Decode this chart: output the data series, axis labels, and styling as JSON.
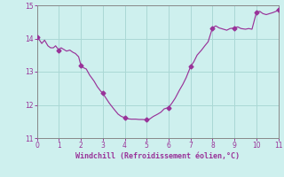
{
  "xlabel": "Windchill (Refroidissement éolien,°C)",
  "xlim": [
    0,
    11
  ],
  "ylim": [
    11,
    15
  ],
  "yticks": [
    11,
    12,
    13,
    14,
    15
  ],
  "xticks": [
    0,
    1,
    2,
    3,
    4,
    5,
    6,
    7,
    8,
    9,
    10,
    11
  ],
  "background_color": "#cef0ee",
  "line_color": "#993399",
  "grid_color": "#aad8d5",
  "x": [
    0.0,
    0.12,
    0.22,
    0.35,
    0.5,
    0.62,
    0.75,
    0.85,
    1.0,
    1.1,
    1.2,
    1.35,
    1.5,
    1.65,
    1.75,
    1.9,
    2.0,
    2.12,
    2.25,
    2.4,
    2.6,
    2.75,
    2.9,
    3.0,
    3.15,
    3.3,
    3.5,
    3.7,
    3.85,
    4.0,
    4.15,
    4.3,
    4.5,
    4.65,
    4.8,
    5.0,
    5.15,
    5.3,
    5.5,
    5.65,
    5.8,
    6.0,
    6.15,
    6.3,
    6.5,
    6.65,
    6.8,
    7.0,
    7.15,
    7.3,
    7.5,
    7.65,
    7.8,
    8.0,
    8.15,
    8.3,
    8.5,
    8.65,
    8.8,
    9.0,
    9.15,
    9.3,
    9.5,
    9.65,
    9.8,
    10.0,
    10.15,
    10.3,
    10.45,
    10.6,
    10.75,
    10.9,
    11.0
  ],
  "y": [
    14.05,
    13.95,
    13.85,
    13.95,
    13.78,
    13.72,
    13.72,
    13.78,
    13.65,
    13.72,
    13.68,
    13.62,
    13.65,
    13.58,
    13.55,
    13.45,
    13.2,
    13.12,
    13.08,
    12.9,
    12.72,
    12.55,
    12.42,
    12.35,
    12.2,
    12.05,
    11.88,
    11.72,
    11.65,
    11.62,
    11.58,
    11.57,
    11.57,
    11.56,
    11.56,
    11.55,
    11.58,
    11.65,
    11.72,
    11.78,
    11.88,
    11.92,
    12.05,
    12.2,
    12.45,
    12.62,
    12.82,
    13.15,
    13.3,
    13.5,
    13.65,
    13.78,
    13.9,
    14.32,
    14.38,
    14.32,
    14.28,
    14.25,
    14.3,
    14.32,
    14.35,
    14.3,
    14.28,
    14.3,
    14.28,
    14.78,
    14.82,
    14.75,
    14.72,
    14.75,
    14.78,
    14.82,
    14.88
  ],
  "marker_x": [
    0,
    1,
    2,
    3,
    4,
    5,
    6,
    7,
    8,
    9,
    10,
    11
  ],
  "marker_y": [
    14.05,
    13.65,
    13.2,
    12.35,
    11.62,
    11.55,
    11.92,
    13.15,
    14.32,
    14.32,
    14.78,
    14.88
  ]
}
